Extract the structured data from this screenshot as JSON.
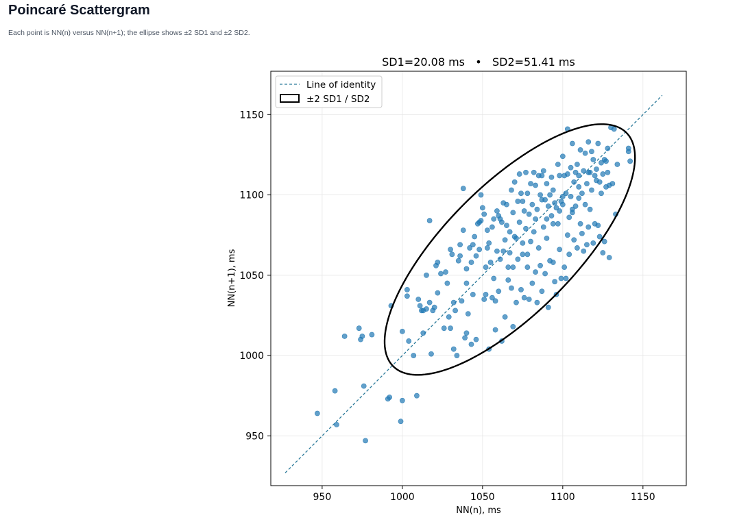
{
  "page": {
    "title": "Poincaré Scattergram",
    "subtitle": "Each point is NN(n) versus NN(n+1); the ellipse shows ±2 SD1 and ±2 SD2."
  },
  "chart_data": {
    "type": "scatter",
    "title": "SD1=20.08 ms   •   SD2=51.41 ms",
    "xlabel": "NN(n), ms",
    "ylabel": "NN(n+1), ms",
    "xlim": [
      918,
      1177
    ],
    "ylim": [
      919,
      1177
    ],
    "xticks": [
      950,
      1000,
      1050,
      1100,
      1150
    ],
    "yticks": [
      950,
      1000,
      1050,
      1100,
      1150
    ],
    "grid": true,
    "legend_position": "top-left",
    "legend": [
      {
        "label": "Line of identity",
        "kind": "dashed-line"
      },
      {
        "label": "±2 SD1 / SD2",
        "kind": "ellipse"
      }
    ],
    "colors": {
      "points": "#1f77b4",
      "identity_line": "#2b7a9a",
      "ellipse": "#000000",
      "grid": "#e6e6e6"
    },
    "identity_line": {
      "from": 927,
      "to": 1162
    },
    "ellipse": {
      "center": [
        1067,
        1066
      ],
      "sd1": 20.08,
      "sd2": 51.41,
      "scale": 2,
      "angle_deg": 45
    },
    "points": [
      [
        947,
        964
      ],
      [
        958,
        978
      ],
      [
        959,
        957
      ],
      [
        977,
        947
      ],
      [
        976,
        981
      ],
      [
        964,
        1012
      ],
      [
        973,
        1017
      ],
      [
        974,
        1010
      ],
      [
        975,
        1012
      ],
      [
        981,
        1013
      ],
      [
        991,
        973
      ],
      [
        992,
        974
      ],
      [
        999,
        959
      ],
      [
        1000,
        972
      ],
      [
        1009,
        975
      ],
      [
        993,
        1031
      ],
      [
        1000,
        1015
      ],
      [
        1004,
        1009
      ],
      [
        1007,
        1000
      ],
      [
        1003,
        1037
      ],
      [
        1003,
        1041
      ],
      [
        1010,
        1035
      ],
      [
        1011,
        1031
      ],
      [
        1012,
        1028
      ],
      [
        1015,
        1029
      ],
      [
        1017,
        1033
      ],
      [
        1018,
        1001
      ],
      [
        1019,
        1028
      ],
      [
        1020,
        1030
      ],
      [
        1022,
        1039
      ],
      [
        1021,
        1056
      ],
      [
        1022,
        1058
      ],
      [
        1024,
        1051
      ],
      [
        1027,
        1052
      ],
      [
        1028,
        1045
      ],
      [
        1013,
        1014
      ],
      [
        1013,
        1028
      ],
      [
        1015,
        1050
      ],
      [
        1017,
        1084
      ],
      [
        1026,
        1017
      ],
      [
        1029,
        1024
      ],
      [
        1030,
        1017
      ],
      [
        1030,
        1066
      ],
      [
        1031,
        1063
      ],
      [
        1032,
        1004
      ],
      [
        1032,
        1033
      ],
      [
        1033,
        1028
      ],
      [
        1034,
        1000
      ],
      [
        1035,
        1059
      ],
      [
        1036,
        1062
      ],
      [
        1036,
        1069
      ],
      [
        1037,
        1034
      ],
      [
        1038,
        1078
      ],
      [
        1038,
        1104
      ],
      [
        1039,
        1011
      ],
      [
        1040,
        1014
      ],
      [
        1040,
        1045
      ],
      [
        1040,
        1054
      ],
      [
        1041,
        1026
      ],
      [
        1042,
        1067
      ],
      [
        1043,
        1058
      ],
      [
        1043,
        1007
      ],
      [
        1044,
        1069
      ],
      [
        1044,
        1038
      ],
      [
        1045,
        1074
      ],
      [
        1046,
        1010
      ],
      [
        1046,
        1062
      ],
      [
        1047,
        1082
      ],
      [
        1048,
        1066
      ],
      [
        1048,
        1083
      ],
      [
        1049,
        1100
      ],
      [
        1049,
        1084
      ],
      [
        1050,
        1092
      ],
      [
        1051,
        1088
      ],
      [
        1051,
        1035
      ],
      [
        1052,
        1038
      ],
      [
        1052,
        1055
      ],
      [
        1053,
        1067
      ],
      [
        1053,
        1078
      ],
      [
        1054,
        1070
      ],
      [
        1054,
        1004
      ],
      [
        1055,
        1058
      ],
      [
        1056,
        1080
      ],
      [
        1056,
        1036
      ],
      [
        1057,
        1085
      ],
      [
        1057,
        1048
      ],
      [
        1058,
        1034
      ],
      [
        1058,
        1016
      ],
      [
        1059,
        1090
      ],
      [
        1059,
        1065
      ],
      [
        1060,
        1087
      ],
      [
        1060,
        1040
      ],
      [
        1061,
        1085
      ],
      [
        1061,
        1060
      ],
      [
        1062,
        1083
      ],
      [
        1062,
        1009
      ],
      [
        1063,
        1095
      ],
      [
        1063,
        1065
      ],
      [
        1064,
        1072
      ],
      [
        1064,
        1024
      ],
      [
        1065,
        1094
      ],
      [
        1065,
        1081
      ],
      [
        1066,
        1055
      ],
      [
        1066,
        1047
      ],
      [
        1067,
        1077
      ],
      [
        1067,
        1064
      ],
      [
        1068,
        1103
      ],
      [
        1068,
        1042
      ],
      [
        1069,
        1089
      ],
      [
        1069,
        1018
      ],
      [
        1070,
        1108
      ],
      [
        1070,
        1074
      ],
      [
        1071,
        1073
      ],
      [
        1071,
        1033
      ],
      [
        1072,
        1096
      ],
      [
        1072,
        1060
      ],
      [
        1073,
        1113
      ],
      [
        1073,
        1083
      ],
      [
        1074,
        1101
      ],
      [
        1074,
        1041
      ],
      [
        1075,
        1096
      ],
      [
        1075,
        1070
      ],
      [
        1076,
        1090
      ],
      [
        1076,
        1036
      ],
      [
        1077,
        1114
      ],
      [
        1077,
        1079
      ],
      [
        1078,
        1101
      ],
      [
        1078,
        1063
      ],
      [
        1079,
        1088
      ],
      [
        1079,
        1035
      ],
      [
        1080,
        1107
      ],
      [
        1080,
        1071
      ],
      [
        1081,
        1094
      ],
      [
        1081,
        1045
      ],
      [
        1082,
        1114
      ],
      [
        1082,
        1077
      ],
      [
        1083,
        1106
      ],
      [
        1083,
        1052
      ],
      [
        1084,
        1091
      ],
      [
        1084,
        1033
      ],
      [
        1085,
        1112
      ],
      [
        1085,
        1067
      ],
      [
        1086,
        1100
      ],
      [
        1086,
        1056
      ],
      [
        1087,
        1097
      ],
      [
        1087,
        1040
      ],
      [
        1088,
        1115
      ],
      [
        1088,
        1080
      ],
      [
        1089,
        1097
      ],
      [
        1089,
        1051
      ],
      [
        1090,
        1107
      ],
      [
        1090,
        1073
      ],
      [
        1091,
        1093
      ],
      [
        1091,
        1030
      ],
      [
        1092,
        1100
      ],
      [
        1092,
        1059
      ],
      [
        1093,
        1111
      ],
      [
        1093,
        1087
      ],
      [
        1094,
        1103
      ],
      [
        1094,
        1058
      ],
      [
        1095,
        1095
      ],
      [
        1095,
        1046
      ],
      [
        1096,
        1092
      ],
      [
        1096,
        1038
      ],
      [
        1097,
        1119
      ],
      [
        1097,
        1082
      ],
      [
        1098,
        1112
      ],
      [
        1098,
        1066
      ],
      [
        1099,
        1096
      ],
      [
        1099,
        1048
      ],
      [
        1100,
        1124
      ],
      [
        1100,
        1099
      ],
      [
        1101,
        1112
      ],
      [
        1101,
        1055
      ],
      [
        1102,
        1101
      ],
      [
        1102,
        1048
      ],
      [
        1103,
        1141
      ],
      [
        1103,
        1113
      ],
      [
        1104,
        1086
      ],
      [
        1104,
        1063
      ],
      [
        1105,
        1117
      ],
      [
        1105,
        1099
      ],
      [
        1106,
        1132
      ],
      [
        1106,
        1091
      ],
      [
        1107,
        1108
      ],
      [
        1107,
        1072
      ],
      [
        1108,
        1114
      ],
      [
        1108,
        1093
      ],
      [
        1109,
        1119
      ],
      [
        1109,
        1067
      ],
      [
        1110,
        1112
      ],
      [
        1110,
        1098
      ],
      [
        1111,
        1128
      ],
      [
        1111,
        1082
      ],
      [
        1112,
        1101
      ],
      [
        1112,
        1076
      ],
      [
        1113,
        1115
      ],
      [
        1113,
        1065
      ],
      [
        1114,
        1126
      ],
      [
        1114,
        1094
      ],
      [
        1115,
        1107
      ],
      [
        1115,
        1069
      ],
      [
        1116,
        1133
      ],
      [
        1116,
        1080
      ],
      [
        1117,
        1114
      ],
      [
        1117,
        1091
      ],
      [
        1118,
        1127
      ],
      [
        1118,
        1103
      ],
      [
        1119,
        1122
      ],
      [
        1119,
        1070
      ],
      [
        1120,
        1112
      ],
      [
        1120,
        1082
      ],
      [
        1121,
        1116
      ],
      [
        1121,
        1109
      ],
      [
        1122,
        1132
      ],
      [
        1122,
        1081
      ],
      [
        1123,
        1108
      ],
      [
        1123,
        1074
      ],
      [
        1124,
        1120
      ],
      [
        1124,
        1101
      ],
      [
        1125,
        1113
      ],
      [
        1125,
        1064
      ],
      [
        1126,
        1122
      ],
      [
        1126,
        1071
      ],
      [
        1127,
        1121
      ],
      [
        1127,
        1105
      ],
      [
        1128,
        1114
      ],
      [
        1128,
        1129
      ],
      [
        1129,
        1106
      ],
      [
        1129,
        1061
      ],
      [
        1130,
        1142
      ],
      [
        1131,
        1107
      ],
      [
        1132,
        1141
      ],
      [
        1133,
        1088
      ],
      [
        1134,
        1119
      ],
      [
        1141,
        1129
      ],
      [
        1142,
        1121
      ],
      [
        1141,
        1127
      ],
      [
        1100,
        1094
      ],
      [
        1087,
        1112
      ],
      [
        1094,
        1082
      ],
      [
        1106,
        1089
      ],
      [
        1078,
        1055
      ],
      [
        1069,
        1055
      ],
      [
        1075,
        1063
      ],
      [
        1083,
        1085
      ],
      [
        1090,
        1085
      ],
      [
        1098,
        1090
      ],
      [
        1103,
        1075
      ],
      [
        1110,
        1105
      ],
      [
        1116,
        1114
      ]
    ]
  }
}
